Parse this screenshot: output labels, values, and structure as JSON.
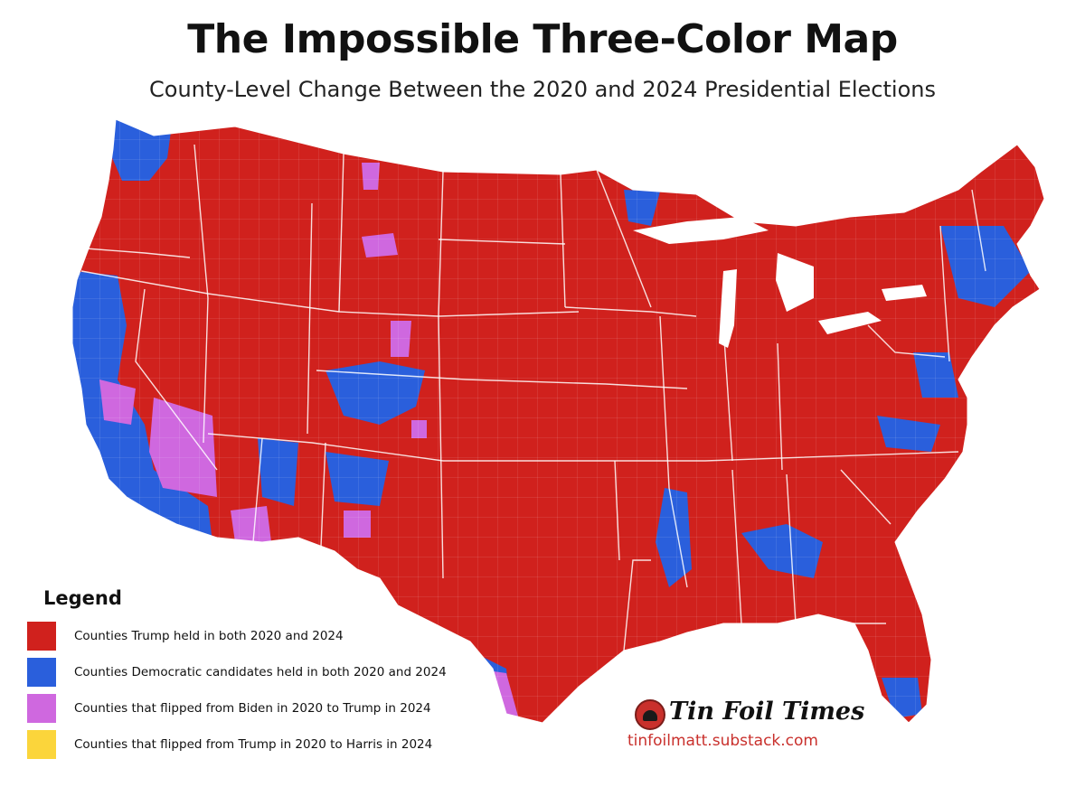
{
  "header": {
    "title": "The Impossible Three-Color Map",
    "subtitle": "County-Level Change Between the 2020 and 2024 Presidential Elections"
  },
  "colors": {
    "trump_both": "#d0211d",
    "dem_both": "#2a5fdc",
    "biden_to_trump": "#cf68df",
    "trump_to_harris": "#fbd53b",
    "boundary": "#ffffff"
  },
  "legend": {
    "heading": "Legend",
    "items": [
      {
        "label": "Counties Trump held in both 2020 and 2024",
        "color": "#d0211d"
      },
      {
        "label": "Counties Democratic candidates held in both 2020 and 2024",
        "color": "#2a5fdc"
      },
      {
        "label": "Counties that flipped from Biden in 2020 to Trump in 2024",
        "color": "#cf68df"
      },
      {
        "label": "Counties that flipped from Trump in 2020 to Harris in 2024",
        "color": "#fbd53b"
      }
    ]
  },
  "branding": {
    "name": "Tin Foil Times",
    "url": "tinfoilmatt.substack.com",
    "logo_icon": "tin-foil-hat-icon"
  }
}
